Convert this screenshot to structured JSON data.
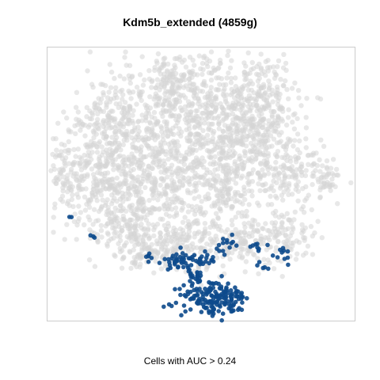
{
  "chart_data": {
    "type": "scatter",
    "title": "Kdm5b_extended (4859g)",
    "xlabel": "Cells with AUC > 0.24",
    "ylabel": "",
    "grid": false,
    "legend": "none",
    "colors": {
      "background_cells": "#d6d6d6",
      "high_auc_cells": "#0d4a8c"
    },
    "series": [
      {
        "name": "",
        "role": "background"
      },
      {
        "name": "",
        "role": "highlight"
      }
    ]
  }
}
